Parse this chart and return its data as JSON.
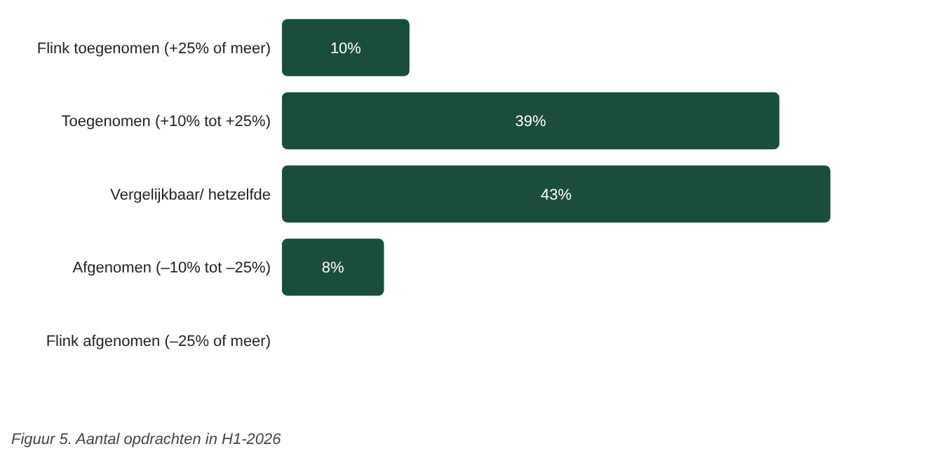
{
  "chart_data": {
    "type": "bar",
    "orientation": "horizontal",
    "categories": [
      "Flink toegenomen (+25% of meer)",
      "Toegenomen (+10% tot +25%)",
      "Vergelijkbaar/ hetzelfde",
      "Afgenomen (–10% tot –25%)",
      "Flink afgenomen (–25% of meer)"
    ],
    "values": [
      10,
      39,
      43,
      8,
      0
    ],
    "value_labels": [
      "10%",
      "39%",
      "43%",
      "8%",
      null
    ],
    "color": "#1a4d3c",
    "annotations": [
      "Figuur 5. Aantal opdrachten in H1-2026"
    ]
  }
}
